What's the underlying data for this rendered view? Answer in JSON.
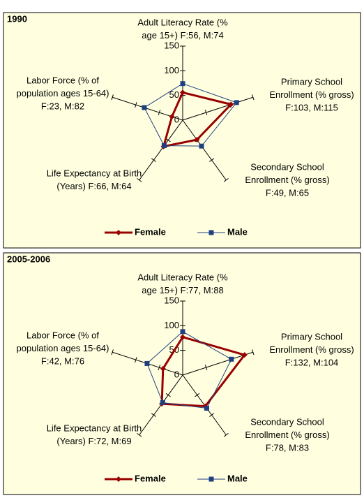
{
  "chart_data": [
    {
      "type": "radar",
      "title": "1990",
      "categories": [
        [
          "Adult Literacy Rate (%",
          "age 15+) F:56, M:74"
        ],
        [
          "Primary School",
          "Enrollment (% gross)",
          "F:103, M:115"
        ],
        [
          "Secondary School",
          "Enrollment (% gross)",
          "F:49, M:65"
        ],
        [
          "Life Expectancy at Birth",
          "(Years) F:66, M:64"
        ],
        [
          "Labor Force (% of",
          "population ages 15-64)",
          "F:23, M:82"
        ]
      ],
      "series": [
        {
          "name": "Female",
          "color": "#990000",
          "values": [
            56,
            103,
            49,
            66,
            23
          ]
        },
        {
          "name": "Male",
          "color": "#1f3f7f",
          "values": [
            74,
            115,
            65,
            64,
            82
          ]
        }
      ],
      "rlim": [
        0,
        150
      ],
      "rticks": [
        0,
        50,
        100,
        150
      ]
    },
    {
      "type": "radar",
      "title": "2005-2006",
      "categories": [
        [
          "Adult Literacy Rate (%",
          "age 15+) F:77, M:88"
        ],
        [
          "Primary School",
          "Enrollment (% gross)",
          "F:132, M:104"
        ],
        [
          "Secondary School",
          "Enrollment (% gross)",
          "F:78, M:83"
        ],
        [
          "Life Expectancy at Birth",
          "(Years) F:72, M:69"
        ],
        [
          "Labor Force (% of",
          "population ages 15-64)",
          "F:42, M:76"
        ]
      ],
      "series": [
        {
          "name": "Female",
          "color": "#990000",
          "values": [
            77,
            132,
            78,
            72,
            42
          ]
        },
        {
          "name": "Male",
          "color": "#1f3f7f",
          "values": [
            88,
            104,
            83,
            69,
            76
          ]
        }
      ],
      "rlim": [
        0,
        150
      ],
      "rticks": [
        0,
        50,
        100,
        150
      ]
    }
  ]
}
